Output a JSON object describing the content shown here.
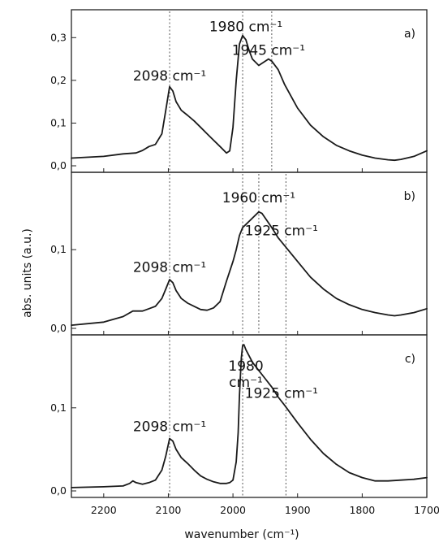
{
  "chart_data": {
    "type": "line",
    "x_axis": {
      "label": "wavenumber (cm⁻¹)",
      "range": [
        2250,
        1700
      ],
      "reversed": true,
      "ticks": [
        "2200",
        "2100",
        "2000",
        "1900",
        "1800",
        "1700"
      ]
    },
    "y_axis_label": "abs. units (a.u.)",
    "grid": false,
    "reference_lines_x": [
      2098,
      1985,
      1960,
      1940,
      1918
    ],
    "line_color": "#1a1a1a",
    "panels": [
      {
        "id": "a",
        "letter": "a)",
        "ylim": [
          0.0,
          0.35
        ],
        "yticks": [
          "0,0",
          "0,1",
          "0,2",
          "0,3"
        ],
        "ytick_values": [
          0.0,
          0.1,
          0.2,
          0.3
        ],
        "vlines": [
          2098,
          1985,
          1940
        ],
        "x": [
          2250,
          2200,
          2170,
          2150,
          2140,
          2130,
          2120,
          2110,
          2104,
          2098,
          2093,
          2088,
          2080,
          2070,
          2060,
          2050,
          2040,
          2030,
          2020,
          2010,
          2005,
          2000,
          1995,
          1990,
          1985,
          1980,
          1975,
          1970,
          1960,
          1950,
          1945,
          1940,
          1930,
          1920,
          1900,
          1880,
          1860,
          1840,
          1820,
          1800,
          1780,
          1760,
          1750,
          1740,
          1720,
          1700
        ],
        "y": [
          0.018,
          0.022,
          0.028,
          0.03,
          0.036,
          0.045,
          0.05,
          0.075,
          0.13,
          0.185,
          0.175,
          0.15,
          0.13,
          0.118,
          0.105,
          0.09,
          0.075,
          0.06,
          0.045,
          0.03,
          0.035,
          0.09,
          0.2,
          0.285,
          0.305,
          0.295,
          0.27,
          0.25,
          0.235,
          0.245,
          0.25,
          0.245,
          0.225,
          0.19,
          0.135,
          0.095,
          0.068,
          0.048,
          0.035,
          0.025,
          0.018,
          0.014,
          0.013,
          0.015,
          0.022,
          0.035
        ],
        "annotations": [
          {
            "lines": [
              "2098 cm⁻¹"
            ],
            "x": 2098,
            "y": 0.2
          },
          {
            "lines": [
              "1980 cm⁻¹"
            ],
            "x": 1980,
            "y": 0.315
          },
          {
            "lines": [
              "1945 cm⁻¹"
            ],
            "x": 1945,
            "y": 0.26
          }
        ]
      },
      {
        "id": "b",
        "letter": "b)",
        "ylim": [
          0.0,
          0.19
        ],
        "yticks": [
          "0,0",
          "0,1"
        ],
        "ytick_values": [
          0.0,
          0.1
        ],
        "vlines": [
          2098,
          1985,
          1960,
          1918
        ],
        "x": [
          2250,
          2200,
          2170,
          2155,
          2150,
          2140,
          2130,
          2120,
          2110,
          2104,
          2098,
          2093,
          2088,
          2080,
          2070,
          2060,
          2050,
          2040,
          2030,
          2020,
          2010,
          2000,
          1995,
          1990,
          1985,
          1980,
          1970,
          1960,
          1955,
          1950,
          1940,
          1930,
          1920,
          1900,
          1880,
          1860,
          1840,
          1820,
          1800,
          1780,
          1760,
          1750,
          1740,
          1720,
          1700
        ],
        "y": [
          0.004,
          0.008,
          0.015,
          0.022,
          0.022,
          0.022,
          0.025,
          0.028,
          0.038,
          0.05,
          0.062,
          0.058,
          0.048,
          0.038,
          0.032,
          0.028,
          0.024,
          0.023,
          0.026,
          0.034,
          0.06,
          0.085,
          0.1,
          0.118,
          0.128,
          0.132,
          0.14,
          0.148,
          0.146,
          0.14,
          0.128,
          0.115,
          0.105,
          0.085,
          0.065,
          0.05,
          0.038,
          0.03,
          0.024,
          0.02,
          0.017,
          0.016,
          0.017,
          0.02,
          0.025
        ],
        "annotations": [
          {
            "lines": [
              "2098 cm⁻¹"
            ],
            "x": 2098,
            "y": 0.072
          },
          {
            "lines": [
              "1960 cm⁻¹"
            ],
            "x": 1960,
            "y": 0.16
          },
          {
            "lines": [
              "1925 cm⁻¹"
            ],
            "x": 1925,
            "y": 0.118
          }
        ]
      },
      {
        "id": "c",
        "letter": "c)",
        "ylim": [
          0.0,
          0.18
        ],
        "yticks": [
          "0,0",
          "0,1"
        ],
        "ytick_values": [
          0.0,
          0.1
        ],
        "vlines": [
          2098,
          1985,
          1918
        ],
        "x": [
          2250,
          2200,
          2170,
          2160,
          2155,
          2150,
          2140,
          2130,
          2120,
          2110,
          2104,
          2098,
          2093,
          2088,
          2080,
          2070,
          2060,
          2050,
          2040,
          2030,
          2020,
          2010,
          2005,
          2000,
          1995,
          1992,
          1990,
          1987,
          1985,
          1983,
          1980,
          1970,
          1960,
          1950,
          1940,
          1930,
          1920,
          1900,
          1880,
          1860,
          1840,
          1820,
          1800,
          1780,
          1760,
          1740,
          1720,
          1700
        ],
        "y": [
          0.004,
          0.005,
          0.006,
          0.009,
          0.012,
          0.01,
          0.008,
          0.01,
          0.013,
          0.025,
          0.042,
          0.063,
          0.06,
          0.05,
          0.04,
          0.033,
          0.025,
          0.018,
          0.014,
          0.011,
          0.009,
          0.009,
          0.01,
          0.013,
          0.035,
          0.07,
          0.115,
          0.16,
          0.175,
          0.176,
          0.17,
          0.155,
          0.145,
          0.135,
          0.125,
          0.113,
          0.103,
          0.082,
          0.062,
          0.045,
          0.032,
          0.022,
          0.016,
          0.012,
          0.012,
          0.013,
          0.014,
          0.016
        ],
        "annotations": [
          {
            "lines": [
              "1980",
              "cm⁻¹"
            ],
            "x": 1980,
            "y": 0.145
          },
          {
            "lines": [
              "2098 cm⁻¹"
            ],
            "x": 2098,
            "y": 0.072
          },
          {
            "lines": [
              "1925 cm⁻¹"
            ],
            "x": 1925,
            "y": 0.112
          }
        ]
      }
    ]
  }
}
